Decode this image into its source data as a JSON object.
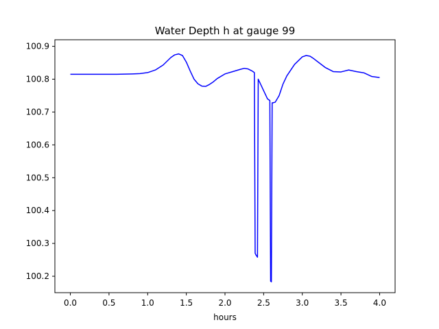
{
  "chart_data": {
    "type": "line",
    "title": "Water Depth h at gauge 99",
    "xlabel": "hours",
    "ylabel": "",
    "xlim": [
      -0.2,
      4.2
    ],
    "ylim": [
      100.15,
      100.92
    ],
    "xticks": [
      0.0,
      0.5,
      1.0,
      1.5,
      2.0,
      2.5,
      3.0,
      3.5,
      4.0
    ],
    "xtick_labels": [
      "0.0",
      "0.5",
      "1.0",
      "1.5",
      "2.0",
      "2.5",
      "3.0",
      "3.5",
      "4.0"
    ],
    "yticks": [
      100.2,
      100.3,
      100.4,
      100.5,
      100.6,
      100.7,
      100.8,
      100.9
    ],
    "ytick_labels": [
      "100.2",
      "100.3",
      "100.4",
      "100.5",
      "100.6",
      "100.7",
      "100.8",
      "100.9"
    ],
    "grid": false,
    "series": [
      {
        "color": "#0000ff",
        "x": [
          0.0,
          0.2,
          0.4,
          0.6,
          0.8,
          0.9,
          1.0,
          1.1,
          1.2,
          1.3,
          1.35,
          1.4,
          1.45,
          1.5,
          1.55,
          1.6,
          1.65,
          1.7,
          1.75,
          1.8,
          1.85,
          1.9,
          2.0,
          2.1,
          2.2,
          2.25,
          2.3,
          2.35,
          2.38,
          2.39,
          2.4,
          2.42,
          2.43,
          2.45,
          2.5,
          2.55,
          2.58,
          2.59,
          2.6,
          2.61,
          2.62,
          2.65,
          2.7,
          2.75,
          2.8,
          2.9,
          3.0,
          3.05,
          3.1,
          3.15,
          3.2,
          3.3,
          3.4,
          3.5,
          3.6,
          3.7,
          3.8,
          3.9,
          4.0
        ],
        "y": [
          100.815,
          100.815,
          100.815,
          100.815,
          100.816,
          100.817,
          100.82,
          100.828,
          100.843,
          100.866,
          100.874,
          100.877,
          100.872,
          100.852,
          100.825,
          100.8,
          100.786,
          100.779,
          100.778,
          100.784,
          100.792,
          100.802,
          100.816,
          100.823,
          100.83,
          100.833,
          100.831,
          100.825,
          100.82,
          100.27,
          100.265,
          100.258,
          100.8,
          100.79,
          100.765,
          100.74,
          100.735,
          100.185,
          100.183,
          100.728,
          100.728,
          100.73,
          100.75,
          100.785,
          100.81,
          100.845,
          100.868,
          100.872,
          100.87,
          100.862,
          100.853,
          100.835,
          100.823,
          100.822,
          100.828,
          100.823,
          100.819,
          100.808,
          100.805
        ]
      }
    ]
  }
}
